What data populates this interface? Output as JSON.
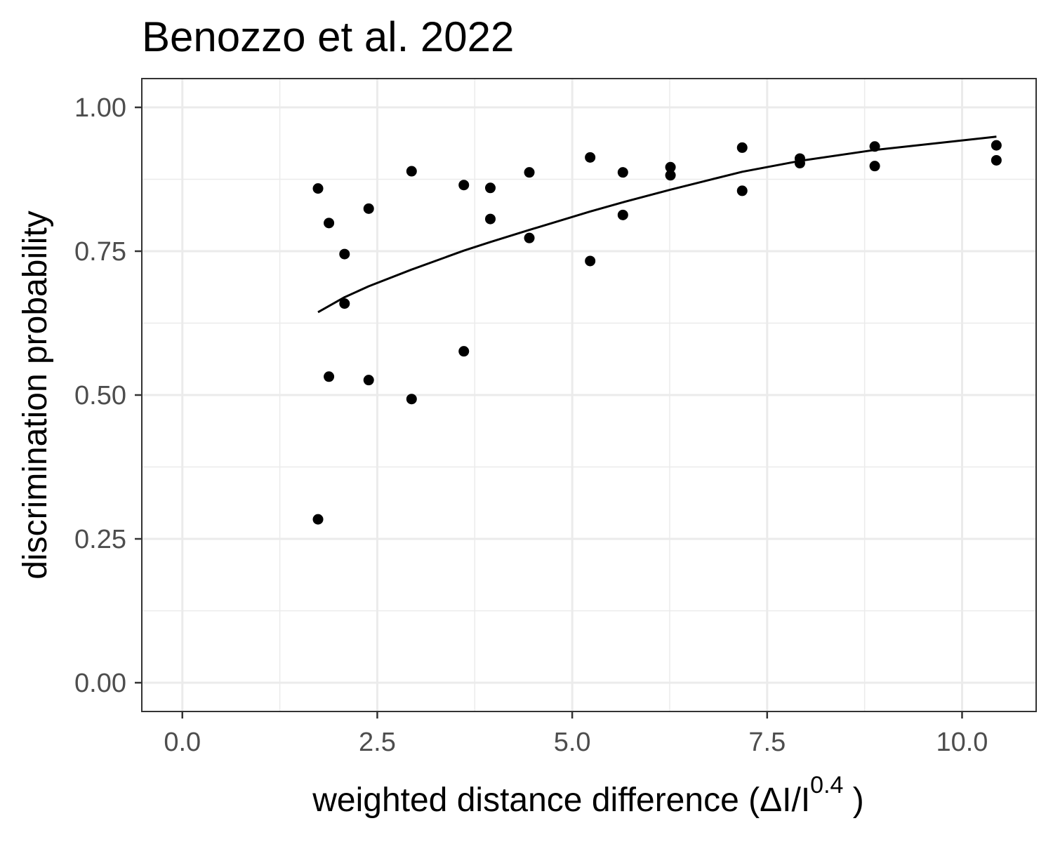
{
  "chart_data": {
    "type": "scatter",
    "title": "Benozzo et al. 2022",
    "xlabel": "weighted  distance  difference (ΔI/I",
    "xlabel_superscript": "0.4",
    "xlabel_suffix": " )",
    "ylabel": "discrimination probability",
    "xlim": [
      -0.52,
      10.95
    ],
    "ylim": [
      -0.05,
      1.05
    ],
    "x_ticks": [
      0.0,
      2.5,
      5.0,
      7.5,
      10.0
    ],
    "x_tick_labels": [
      "0.0",
      "2.5",
      "5.0",
      "7.5",
      "10.0"
    ],
    "y_ticks": [
      0.0,
      0.25,
      0.5,
      0.75,
      1.0
    ],
    "y_tick_labels": [
      "0.00",
      "0.25",
      "0.50",
      "0.75",
      "1.00"
    ],
    "x_minor_ticks": [
      1.25,
      3.75,
      6.25,
      8.75
    ],
    "y_minor_ticks": [
      0.125,
      0.375,
      0.625,
      0.875
    ],
    "grid": true,
    "point_color": "#000000",
    "points": [
      {
        "x": 1.74,
        "y": 0.859
      },
      {
        "x": 1.74,
        "y": 0.284
      },
      {
        "x": 1.88,
        "y": 0.799
      },
      {
        "x": 1.88,
        "y": 0.532
      },
      {
        "x": 2.08,
        "y": 0.745
      },
      {
        "x": 2.08,
        "y": 0.659
      },
      {
        "x": 2.39,
        "y": 0.824
      },
      {
        "x": 2.39,
        "y": 0.526
      },
      {
        "x": 2.94,
        "y": 0.889
      },
      {
        "x": 2.94,
        "y": 0.493
      },
      {
        "x": 3.61,
        "y": 0.865
      },
      {
        "x": 3.61,
        "y": 0.576
      },
      {
        "x": 3.95,
        "y": 0.86
      },
      {
        "x": 3.95,
        "y": 0.806
      },
      {
        "x": 4.45,
        "y": 0.887
      },
      {
        "x": 4.45,
        "y": 0.773
      },
      {
        "x": 5.23,
        "y": 0.913
      },
      {
        "x": 5.23,
        "y": 0.733
      },
      {
        "x": 5.65,
        "y": 0.887
      },
      {
        "x": 5.65,
        "y": 0.813
      },
      {
        "x": 6.26,
        "y": 0.896
      },
      {
        "x": 6.26,
        "y": 0.882
      },
      {
        "x": 7.18,
        "y": 0.93
      },
      {
        "x": 7.18,
        "y": 0.855
      },
      {
        "x": 7.92,
        "y": 0.911
      },
      {
        "x": 7.92,
        "y": 0.903
      },
      {
        "x": 8.88,
        "y": 0.932
      },
      {
        "x": 8.88,
        "y": 0.898
      },
      {
        "x": 10.44,
        "y": 0.934
      },
      {
        "x": 10.44,
        "y": 0.908
      }
    ],
    "fit_curve": {
      "color": "#000000",
      "x": [
        1.74,
        2.08,
        2.39,
        2.94,
        3.61,
        3.95,
        4.45,
        5.23,
        5.65,
        6.26,
        7.18,
        7.92,
        8.88,
        10.44
      ],
      "y": [
        0.644,
        0.67,
        0.689,
        0.718,
        0.751,
        0.766,
        0.787,
        0.819,
        0.835,
        0.857,
        0.888,
        0.907,
        0.926,
        0.949
      ]
    }
  }
}
